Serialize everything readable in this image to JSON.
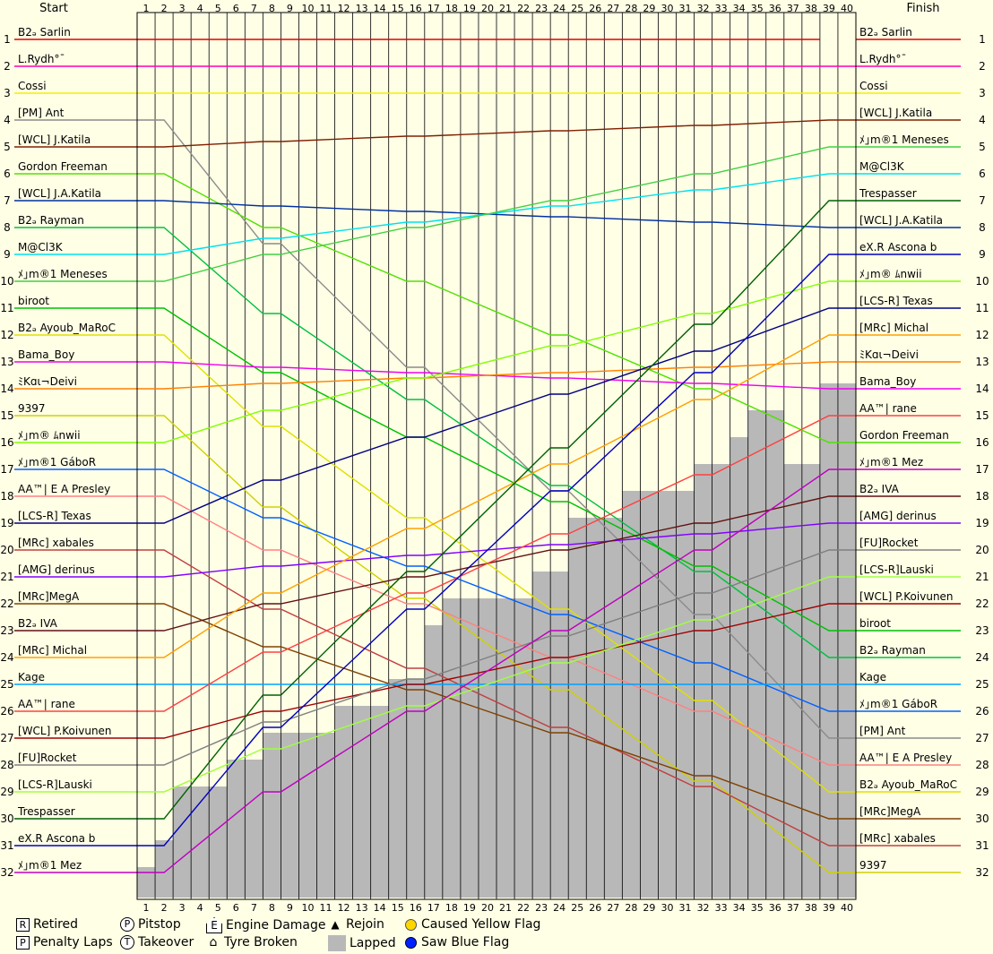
{
  "colors": {
    "background": "#ffffe6",
    "grid": "#000000",
    "lapped": "#b8b8b8",
    "yellow_flag": "#ffd700",
    "blue_flag": "#0020ff"
  },
  "chart_data": {
    "type": "line",
    "title": "",
    "left_header": "Start",
    "right_header": "Finish",
    "laps": [
      1,
      2,
      3,
      4,
      5,
      6,
      7,
      8,
      9,
      10,
      11,
      12,
      13,
      14,
      15,
      16,
      17,
      18,
      19,
      20,
      21,
      22,
      23,
      24,
      25,
      26,
      27,
      28,
      29,
      30,
      31,
      32,
      33,
      34,
      35,
      36,
      37,
      38,
      39,
      40
    ],
    "positions": [
      1,
      2,
      3,
      4,
      5,
      6,
      7,
      8,
      9,
      10,
      11,
      12,
      13,
      14,
      15,
      16,
      17,
      18,
      19,
      20,
      21,
      22,
      23,
      24,
      25,
      26,
      27,
      28,
      29,
      30,
      31,
      32
    ],
    "right_position_labels": [
      "1",
      "2",
      "3",
      "4",
      "5",
      "6",
      "7",
      "8",
      "9",
      "10",
      "11",
      "12",
      "13",
      "14",
      "15",
      "16",
      "17",
      "18",
      "19",
      "20",
      "21",
      "22",
      "23",
      "24",
      "25",
      "26",
      "27",
      "28",
      "29",
      "30",
      "31",
      "32"
    ],
    "start_grid": [
      {
        "pos": 1,
        "name": "B2ₔ Sarlin",
        "color": "#e00000"
      },
      {
        "pos": 2,
        "name": "L.Rydh°¯",
        "color": "#ff00b0"
      },
      {
        "pos": 3,
        "name": "Cossi",
        "color": "#f0f000"
      },
      {
        "pos": 4,
        "name": "[PM] Ant",
        "color": "#8c8c8c"
      },
      {
        "pos": 5,
        "name": "[WCL] J.Katila",
        "color": "#802000"
      },
      {
        "pos": 6,
        "name": "Gordon Freeman",
        "color": "#50e000"
      },
      {
        "pos": 7,
        "name": "[WCL] J.A.Katila",
        "color": "#0030a0"
      },
      {
        "pos": 8,
        "name": "B2ₔ Rayman",
        "color": "#00c040"
      },
      {
        "pos": 9,
        "name": "M@Cl3K",
        "color": "#00e0f0"
      },
      {
        "pos": 10,
        "name": "ﾒ｣m®1 Meneses",
        "color": "#40d040"
      },
      {
        "pos": 11,
        "name": "biroot",
        "color": "#00c000"
      },
      {
        "pos": 12,
        "name": "B2ₔ Ayoub_MaRoC",
        "color": "#e0e000"
      },
      {
        "pos": 13,
        "name": "Bama_Boy",
        "color": "#f000f0"
      },
      {
        "pos": 14,
        "name": "ﾐKɑι¬Deivi",
        "color": "#ff8000"
      },
      {
        "pos": 15,
        "name": "9397",
        "color": "#d0d000"
      },
      {
        "pos": 16,
        "name": "ﾒ｣m® ﾑnwii",
        "color": "#80ff00"
      },
      {
        "pos": 17,
        "name": "ﾒ｣m®1 GáboR",
        "color": "#0060ff"
      },
      {
        "pos": 18,
        "name": "AA™| E A Presley",
        "color": "#ff8080"
      },
      {
        "pos": 19,
        "name": "[LCS-R] Texas",
        "color": "#000080"
      },
      {
        "pos": 20,
        "name": "[MRc] xabales",
        "color": "#c04040"
      },
      {
        "pos": 21,
        "name": "[AMG] derinus",
        "color": "#8000ff"
      },
      {
        "pos": 22,
        "name": "[MRc]MegA",
        "color": "#804000"
      },
      {
        "pos": 23,
        "name": "B2ₔ IVA",
        "color": "#601010"
      },
      {
        "pos": 24,
        "name": "[MRc] Michal",
        "color": "#ffa000"
      },
      {
        "pos": 25,
        "name": "Kage",
        "color": "#00a0ff"
      },
      {
        "pos": 26,
        "name": "AA™| rane",
        "color": "#ff4040"
      },
      {
        "pos": 27,
        "name": "[WCL] P.Koivunen",
        "color": "#a00000"
      },
      {
        "pos": 28,
        "name": "[FU]Rocket",
        "color": "#808080"
      },
      {
        "pos": 29,
        "name": "[LCS-R]Lauski",
        "color": "#a0ff40"
      },
      {
        "pos": 30,
        "name": "Trespasser",
        "color": "#006000"
      },
      {
        "pos": 31,
        "name": "eX.R Ascona b",
        "color": "#0000c0"
      },
      {
        "pos": 32,
        "name": "ﾒ｣m®1 Mez",
        "color": "#c000c0"
      }
    ],
    "finish_order": [
      {
        "pos": 1,
        "name": "B2ₔ Sarlin"
      },
      {
        "pos": 2,
        "name": "L.Rydh°¯"
      },
      {
        "pos": 3,
        "name": "Cossi"
      },
      {
        "pos": 4,
        "name": "[WCL] J.Katila"
      },
      {
        "pos": 5,
        "name": "ﾒ｣m®1 Meneses"
      },
      {
        "pos": 6,
        "name": "M@Cl3K"
      },
      {
        "pos": 7,
        "name": "Trespasser"
      },
      {
        "pos": 8,
        "name": "[WCL] J.A.Katila"
      },
      {
        "pos": 9,
        "name": "eX.R Ascona b"
      },
      {
        "pos": 10,
        "name": "ﾒ｣m® ﾑnwii"
      },
      {
        "pos": 11,
        "name": "[LCS-R] Texas"
      },
      {
        "pos": 12,
        "name": "[MRc] Michal"
      },
      {
        "pos": 13,
        "name": "ﾐKɑι¬Deivi"
      },
      {
        "pos": 14,
        "name": "Bama_Boy"
      },
      {
        "pos": 15,
        "name": "AA™| rane"
      },
      {
        "pos": 16,
        "name": "Gordon Freeman"
      },
      {
        "pos": 17,
        "name": "ﾒ｣m®1 Mez"
      },
      {
        "pos": 18,
        "name": "B2ₔ IVA"
      },
      {
        "pos": 19,
        "name": "[AMG] derinus"
      },
      {
        "pos": 20,
        "name": "[FU]Rocket"
      },
      {
        "pos": 21,
        "name": "[LCS-R]Lauski"
      },
      {
        "pos": 22,
        "name": "[WCL] P.Koivunen"
      },
      {
        "pos": 23,
        "name": "biroot"
      },
      {
        "pos": 24,
        "name": "B2ₔ Rayman"
      },
      {
        "pos": 25,
        "name": "Kage"
      },
      {
        "pos": 26,
        "name": "ﾒ｣m®1 GáboR"
      },
      {
        "pos": 27,
        "name": "[PM] Ant"
      },
      {
        "pos": 28,
        "name": "AA™| E A Presley"
      },
      {
        "pos": 29,
        "name": "B2ₔ Ayoub_MaRoC"
      },
      {
        "pos": 30,
        "name": "[MRc]MegA"
      },
      {
        "pos": 31,
        "name": "[MRc] xabales"
      },
      {
        "pos": 32,
        "name": "9397"
      }
    ],
    "lapped_region_top_position": [
      32,
      31,
      29,
      29,
      29,
      28,
      28,
      27,
      27,
      27,
      27,
      26,
      26,
      26,
      25,
      25,
      23,
      22,
      22,
      22,
      22,
      22,
      21,
      21,
      19,
      19,
      19,
      18,
      18,
      18,
      18,
      17,
      17,
      16,
      15,
      15,
      17,
      17,
      14,
      14
    ],
    "leader_laps_led_by": "B2ₔ Sarlin",
    "grid": true
  },
  "legend": {
    "retired": "Retired",
    "penalty_laps": "Penalty Laps",
    "pitstop": "Pitstop",
    "takeover": "Takeover",
    "engine_damage": "Engine Damage",
    "tyre_broken": "Tyre Broken",
    "rejoin": "Rejoin",
    "lapped": "Lapped",
    "caused_yellow_flag": "Caused Yellow Flag",
    "saw_blue_flag": "Saw Blue Flag",
    "sym_r": "R",
    "sym_p": "P",
    "sym_t": "T",
    "sym_e": "E",
    "sym_tri": "▲"
  }
}
